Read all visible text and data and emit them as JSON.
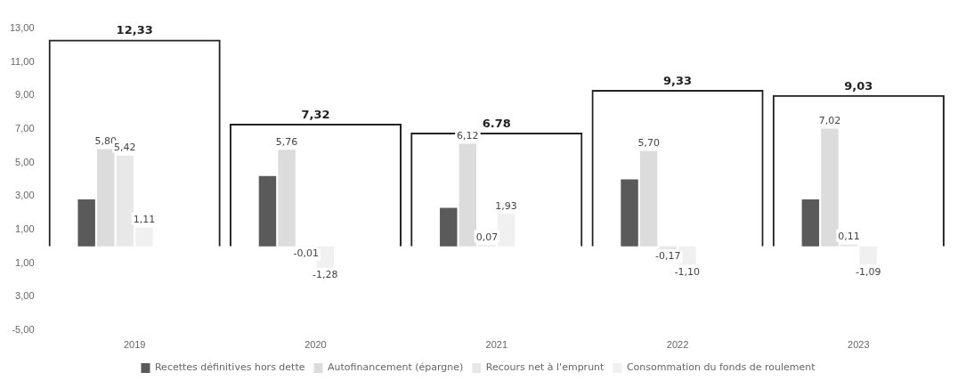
{
  "chart_data": {
    "type": "bar",
    "categories": [
      "2019",
      "2020",
      "2021",
      "2022",
      "2023"
    ],
    "series": [
      {
        "color": "#222222",
        "values": [
          12.33,
          7.32,
          6.78,
          9.33,
          9.03
        ],
        "value_labels": [
          "12,33",
          "7,32",
          "6.78",
          "9,33",
          "9,03"
        ]
      },
      {
        "name": "Recettes définitives hors dette",
        "color": "#5a5a5a",
        "values": [
          2.8,
          4.2,
          2.3,
          4.0,
          2.8
        ]
      },
      {
        "name": "Autofinancement (épargne)",
        "color": "#dcdcdc",
        "values": [
          5.8,
          5.76,
          6.12,
          5.7,
          7.02
        ],
        "value_labels": [
          "5,80",
          "5,76",
          "6,12",
          "5,70",
          "7,02"
        ]
      },
      {
        "name": "Recours net à l'emprunt",
        "color": "#e8e8e8",
        "values": [
          5.42,
          -0.01,
          0.07,
          -0.17,
          0.11
        ],
        "value_labels": [
          "5,42",
          "-0,01",
          "0,07",
          "-0,17",
          "0,11"
        ]
      },
      {
        "name": "Consommation du fonds de roulement",
        "color": "#f0f0f0",
        "values": [
          1.11,
          -1.28,
          1.93,
          -1.1,
          -1.09
        ],
        "value_labels": [
          "1,11",
          "-1,28",
          "1,93",
          "-1,10",
          "-1,09"
        ]
      }
    ],
    "ylim": [
      -5,
      13
    ],
    "yticks": [
      {
        "value": -5,
        "label": "-5,00"
      },
      {
        "value": -3,
        "label": "3,00"
      },
      {
        "value": -1,
        "label": "1,00"
      },
      {
        "value": 1,
        "label": "1,00"
      },
      {
        "value": 3,
        "label": "3,00"
      },
      {
        "value": 5,
        "label": "5,00"
      },
      {
        "value": 7,
        "label": "7,00"
      },
      {
        "value": 9,
        "label": "9,00"
      },
      {
        "value": 11,
        "label": "11,00"
      },
      {
        "value": 13,
        "label": "13,00"
      }
    ],
    "grid": false,
    "legend": "bottom"
  }
}
